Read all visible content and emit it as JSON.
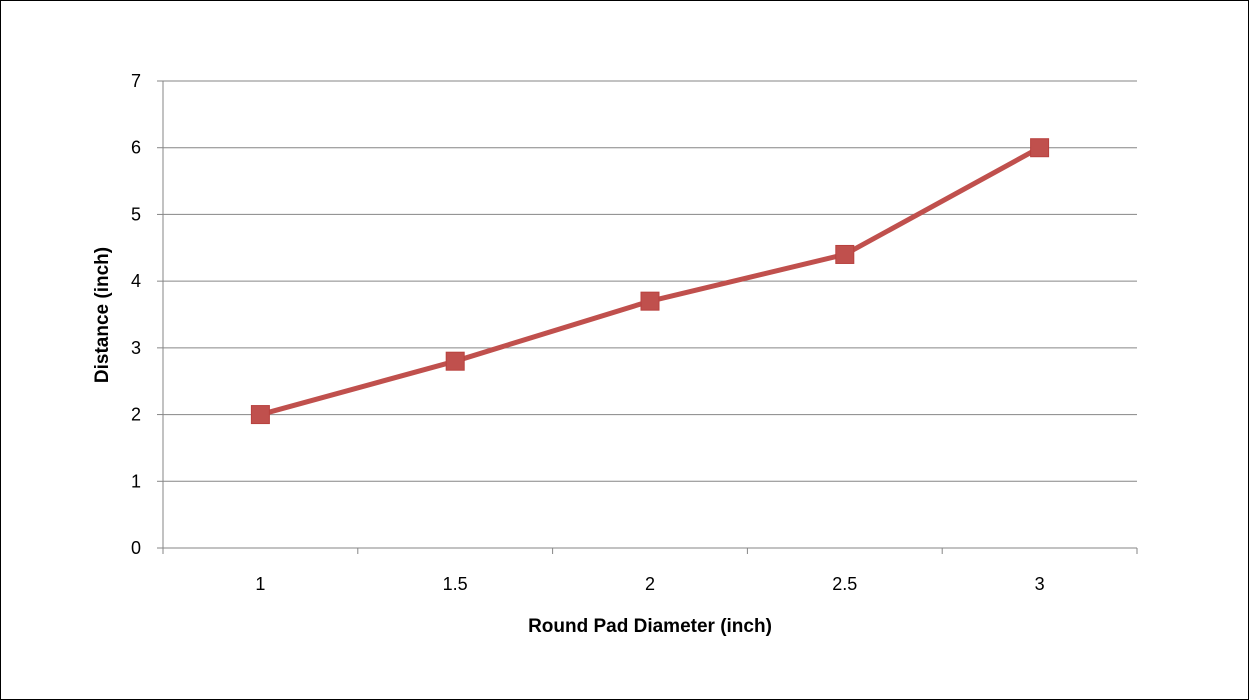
{
  "chart_data": {
    "type": "line",
    "title": "",
    "xlabel": "Round Pad Diameter (inch)",
    "ylabel": "Distance  (inch)",
    "categories": [
      "1",
      "1.5",
      "2",
      "2.5",
      "3"
    ],
    "y_ticks": [
      "0",
      "1",
      "2",
      "3",
      "4",
      "5",
      "6",
      "7"
    ],
    "ylim": [
      0,
      7
    ],
    "grid": true,
    "legend": "none",
    "series": [
      {
        "values": [
          2.0,
          2.8,
          3.7,
          4.4,
          6.0
        ],
        "color": "#c0504d",
        "marker": "square"
      }
    ]
  }
}
